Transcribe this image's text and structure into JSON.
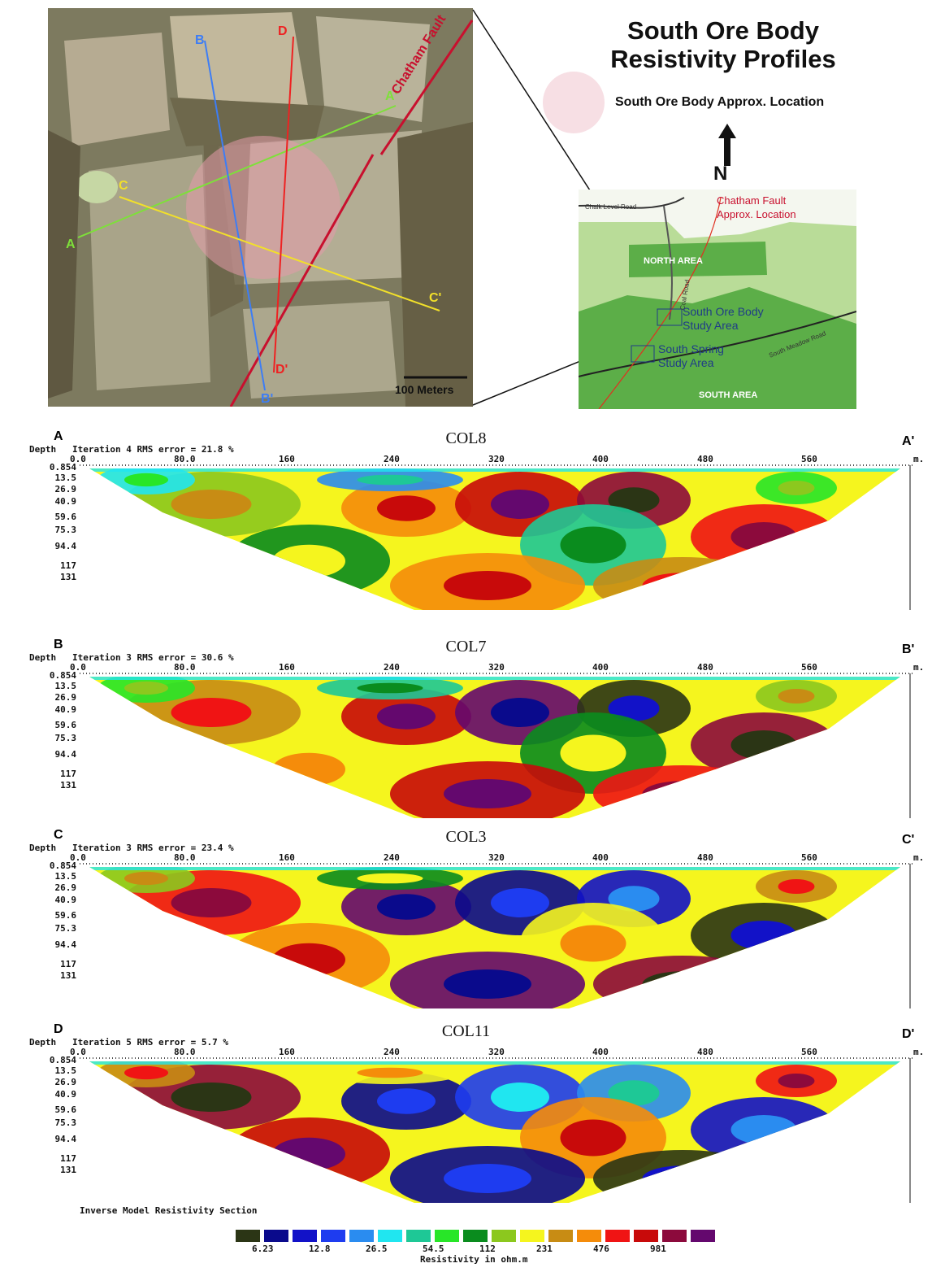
{
  "title_line1": "South Ore Body",
  "title_line2": "Resistivity Profiles",
  "ore_legend_label": "South Ore Body Approx. Location",
  "north_label": "N",
  "aerial": {
    "fault_label": "Chatham Fault",
    "scale_label": "100 Meters",
    "lines": [
      {
        "start": "A",
        "end": "A'",
        "color": "#7ee03a"
      },
      {
        "start": "B",
        "end": "B'",
        "color": "#3d7df5"
      },
      {
        "start": "C",
        "end": "C'",
        "color": "#f2e02a"
      },
      {
        "start": "D",
        "end": "D'",
        "color": "#ee2222"
      }
    ]
  },
  "minimap": {
    "fault_label_1": "Chatham Fault",
    "fault_label_2": "Approx. Location",
    "road_1": "Chalk Level Road",
    "road_2": "Coal Road",
    "road_3": "South Meadow Road",
    "north_area": "NORTH AREA",
    "south_area": "SOUTH AREA",
    "study_1_line1": "South Ore Body",
    "study_1_line2": "Study Area",
    "study_2_line1": "South Spring",
    "study_2_line2": "Study Area"
  },
  "profiles": [
    {
      "letter_start": "A",
      "letter_end": "A'",
      "name": "COL8",
      "info": "Depth   Iteration 4 RMS error = 21.8 %"
    },
    {
      "letter_start": "B",
      "letter_end": "B'",
      "name": "COL7",
      "info": "Depth   Iteration 3 RMS error = 30.6 %"
    },
    {
      "letter_start": "C",
      "letter_end": "C'",
      "name": "COL3",
      "info": "Depth   Iteration 3 RMS error = 23.4 %"
    },
    {
      "letter_start": "D",
      "letter_end": "D'",
      "name": "COL11",
      "info": "Depth   Iteration 5 RMS error = 5.7 %"
    }
  ],
  "x_ticks": [
    "0.0",
    "80.0",
    "160",
    "240",
    "320",
    "400",
    "480",
    "560"
  ],
  "x_unit": "m.",
  "depth_ticks": [
    "0.854",
    "13.5",
    "26.9",
    "40.9",
    "59.6",
    "75.3",
    "94.4",
    "117",
    "131"
  ],
  "section_title": "Inverse Model Resistivity Section",
  "scale_colors": [
    "#2b3515",
    "#0a0a8c",
    "#1212c8",
    "#1e3cf0",
    "#2a8cf0",
    "#20e6f0",
    "#1ec896",
    "#28e628",
    "#0a8c1e",
    "#8cc81e",
    "#f5f51e",
    "#c88c14",
    "#f58c0a",
    "#f01414",
    "#c80a0a",
    "#8c0a3c",
    "#64086e"
  ],
  "scale_labels": [
    "6.23",
    "12.8",
    "26.5",
    "54.5",
    "112",
    "231",
    "476",
    "981"
  ],
  "scale_unit": "Resistivity in ohm.m"
}
